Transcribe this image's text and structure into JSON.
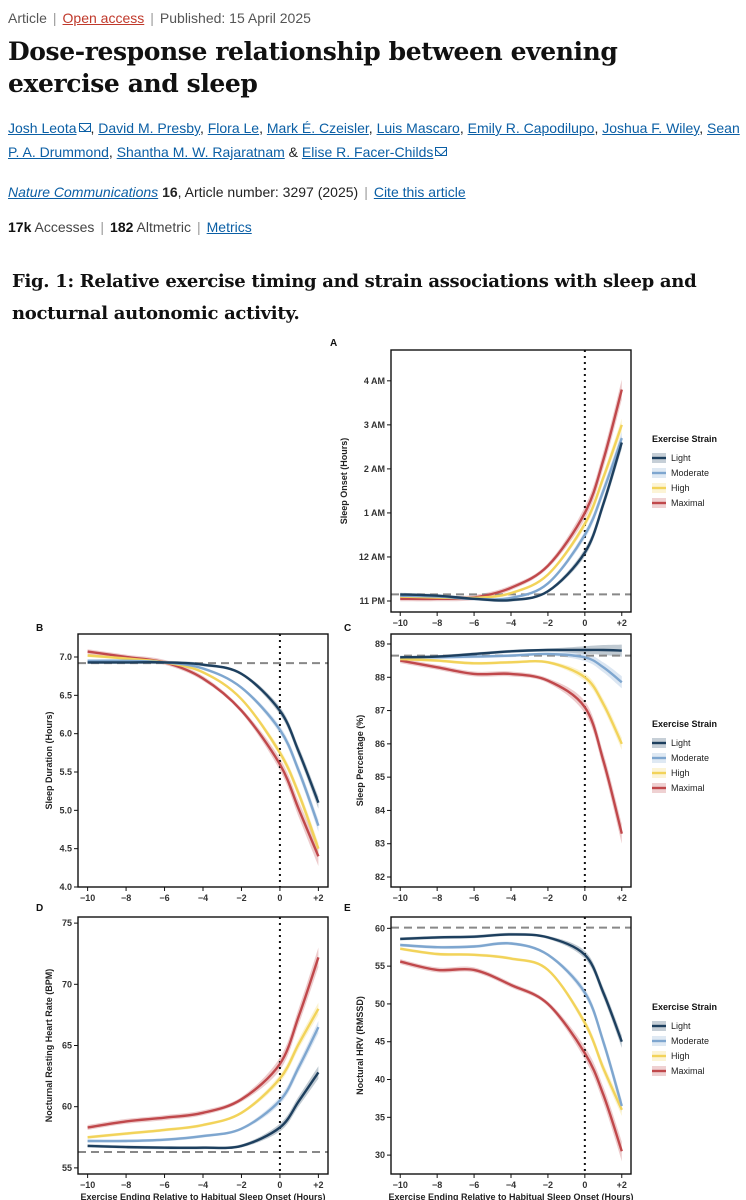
{
  "meta": {
    "type": "Article",
    "access": "Open access",
    "published": "Published: 15 April 2025"
  },
  "title": "Dose-response relationship between evening exercise and sleep",
  "authors": [
    "Josh Leota",
    "David M. Presby",
    "Flora Le",
    "Mark É. Czeisler",
    "Luis Mascaro",
    "Emily R. Capodilupo",
    "Joshua F. Wiley",
    "Sean P. A. Drummond",
    "Shantha M. W. Rajaratnam",
    "Elise R. Facer-Childs"
  ],
  "authors_joiner": "&",
  "journal": {
    "name": "Nature Communications",
    "volume": "16",
    "article_number": ", Article number: 3297 (2025)",
    "cite": "Cite this article"
  },
  "metrics": {
    "accesses": "17k",
    "accesses_label": "Accesses",
    "altmetric": "182",
    "altmetric_label": "Altmetric",
    "metrics_link": "Metrics"
  },
  "figure": {
    "title": "Fig. 1: Relative exercise timing and strain associations with sleep and nocturnal autonomic activity."
  },
  "colors": {
    "Light": "#1d3f5e",
    "Moderate": "#7ea6cf",
    "High": "#f2d35a",
    "Maximal": "#c0484b",
    "reference": "#888888"
  },
  "chart_data": [
    {
      "panel": "A",
      "type": "line",
      "ylabel": "Sleep Onset (Hours)",
      "xlabel": "",
      "xlim": [
        -10.5,
        2.5
      ],
      "ylim": [
        -1.25,
        4.7
      ],
      "xticks": [
        -10,
        -8,
        -6,
        -4,
        -2,
        0,
        2
      ],
      "xtick_labels": [
        "−10",
        "−8",
        "−6",
        "−4",
        "−2",
        "0",
        "+2"
      ],
      "yticks": [
        -1,
        0,
        1,
        2,
        3,
        4
      ],
      "ytick_labels": [
        "11 PM",
        "12 AM",
        "1 AM",
        "2 AM",
        "3 AM",
        "4 AM"
      ],
      "reference_y": -0.85,
      "legend_title": "Exercise Strain",
      "x": [
        -10,
        -8,
        -6,
        -4,
        -2,
        0,
        1,
        2
      ],
      "series": [
        {
          "name": "Light",
          "values": [
            -0.85,
            -0.88,
            -0.95,
            -0.98,
            -0.78,
            0.1,
            1.2,
            2.6
          ]
        },
        {
          "name": "Moderate",
          "values": [
            -0.88,
            -0.9,
            -0.95,
            -0.93,
            -0.6,
            0.5,
            1.5,
            2.7
          ]
        },
        {
          "name": "High",
          "values": [
            -0.9,
            -0.92,
            -0.93,
            -0.82,
            -0.4,
            0.75,
            1.8,
            3.0
          ]
        },
        {
          "name": "Maximal",
          "values": [
            -0.95,
            -0.95,
            -0.92,
            -0.7,
            -0.2,
            1.0,
            2.2,
            3.8
          ]
        }
      ]
    },
    {
      "panel": "B",
      "type": "line",
      "ylabel": "Sleep Duration (Hours)",
      "xlabel": "",
      "xlim": [
        -10.5,
        2.5
      ],
      "ylim": [
        4.0,
        7.3
      ],
      "xticks": [
        -10,
        -8,
        -6,
        -4,
        -2,
        0,
        2
      ],
      "xtick_labels": [
        "−10",
        "−8",
        "−6",
        "−4",
        "−2",
        "0",
        "+2"
      ],
      "yticks": [
        4.0,
        4.5,
        5.0,
        5.5,
        6.0,
        6.5,
        7.0
      ],
      "ytick_labels": [
        "4.0",
        "4.5",
        "5.0",
        "5.5",
        "6.0",
        "6.5",
        "7.0"
      ],
      "reference_y": 6.92,
      "x": [
        -10,
        -8,
        -6,
        -4,
        -2,
        0,
        1,
        2
      ],
      "series": [
        {
          "name": "Light",
          "values": [
            6.93,
            6.93,
            6.93,
            6.9,
            6.78,
            6.3,
            5.75,
            5.1
          ]
        },
        {
          "name": "Moderate",
          "values": [
            6.95,
            6.95,
            6.93,
            6.85,
            6.6,
            6.05,
            5.5,
            4.8
          ]
        },
        {
          "name": "High",
          "values": [
            7.02,
            6.98,
            6.93,
            6.8,
            6.45,
            5.75,
            5.2,
            4.5
          ]
        },
        {
          "name": "Maximal",
          "values": [
            7.07,
            7.0,
            6.93,
            6.72,
            6.3,
            5.6,
            5.0,
            4.4
          ]
        }
      ]
    },
    {
      "panel": "C",
      "type": "line",
      "ylabel": "Sleep Percentage (%)",
      "xlabel": "",
      "xlim": [
        -10.5,
        2.5
      ],
      "ylim": [
        81.7,
        89.3
      ],
      "xticks": [
        -10,
        -8,
        -6,
        -4,
        -2,
        0,
        2
      ],
      "xtick_labels": [
        "−10",
        "−8",
        "−6",
        "−4",
        "−2",
        "0",
        "+2"
      ],
      "yticks": [
        82,
        83,
        84,
        85,
        86,
        87,
        88,
        89
      ],
      "ytick_labels": [
        "82",
        "83",
        "84",
        "85",
        "86",
        "87",
        "88",
        "89"
      ],
      "reference_y": 88.65,
      "legend_title": "Exercise Strain",
      "x": [
        -10,
        -8,
        -6,
        -4,
        -2,
        0,
        1,
        2
      ],
      "series": [
        {
          "name": "Light",
          "values": [
            88.6,
            88.62,
            88.7,
            88.78,
            88.82,
            88.82,
            88.82,
            88.8
          ]
        },
        {
          "name": "Moderate",
          "values": [
            88.6,
            88.6,
            88.62,
            88.65,
            88.7,
            88.6,
            88.3,
            87.85
          ]
        },
        {
          "name": "High",
          "values": [
            88.55,
            88.5,
            88.42,
            88.45,
            88.45,
            88.0,
            87.2,
            86.0
          ]
        },
        {
          "name": "Maximal",
          "values": [
            88.5,
            88.3,
            88.1,
            88.1,
            87.9,
            87.1,
            85.5,
            83.3
          ]
        }
      ]
    },
    {
      "panel": "D",
      "type": "line",
      "ylabel": "Nocturnal Resting Heart Rate (BPM)",
      "xlabel": "Exercise Ending Relative to Habitual Sleep Onset (Hours)",
      "xlim": [
        -10.5,
        2.5
      ],
      "ylim": [
        54.5,
        75.5
      ],
      "xticks": [
        -10,
        -8,
        -6,
        -4,
        -2,
        0,
        2
      ],
      "xtick_labels": [
        "−10",
        "−8",
        "−6",
        "−4",
        "−2",
        "0",
        "+2"
      ],
      "yticks": [
        55,
        60,
        65,
        70,
        75
      ],
      "ytick_labels": [
        "55",
        "60",
        "65",
        "70",
        "75"
      ],
      "reference_y": 56.3,
      "x": [
        -10,
        -8,
        -6,
        -4,
        -2,
        0,
        1,
        2
      ],
      "series": [
        {
          "name": "Light",
          "values": [
            56.8,
            56.7,
            56.65,
            56.65,
            56.8,
            58.3,
            60.5,
            62.8
          ]
        },
        {
          "name": "Moderate",
          "values": [
            57.2,
            57.2,
            57.3,
            57.6,
            58.2,
            60.5,
            63.3,
            66.5
          ]
        },
        {
          "name": "High",
          "values": [
            57.5,
            57.8,
            58.1,
            58.5,
            59.5,
            62.3,
            65.2,
            68.0
          ]
        },
        {
          "name": "Maximal",
          "values": [
            58.3,
            58.8,
            59.1,
            59.5,
            60.6,
            63.5,
            67.5,
            72.2
          ]
        }
      ]
    },
    {
      "panel": "E",
      "type": "line",
      "ylabel": "Noctural HRV (RMSSD)",
      "xlabel": "Exercise Ending Relative to Habitual Sleep Onset (Hours)",
      "xlim": [
        -10.5,
        2.5
      ],
      "ylim": [
        27.5,
        61.5
      ],
      "xticks": [
        -10,
        -8,
        -6,
        -4,
        -2,
        0,
        2
      ],
      "xtick_labels": [
        "−10",
        "−8",
        "−6",
        "−4",
        "−2",
        "0",
        "+2"
      ],
      "yticks": [
        30,
        35,
        40,
        45,
        50,
        55,
        60
      ],
      "ytick_labels": [
        "30",
        "35",
        "40",
        "45",
        "50",
        "55",
        "60"
      ],
      "reference_y": 60.1,
      "legend_title": "Exercise Strain",
      "x": [
        -10,
        -8,
        -6,
        -4,
        -2,
        0,
        1,
        2
      ],
      "series": [
        {
          "name": "Light",
          "values": [
            58.6,
            58.8,
            58.9,
            59.2,
            58.8,
            56.5,
            51.5,
            45.0
          ]
        },
        {
          "name": "Moderate",
          "values": [
            57.8,
            57.5,
            57.6,
            58.0,
            56.5,
            51.5,
            45.0,
            36.5
          ]
        },
        {
          "name": "High",
          "values": [
            57.3,
            56.6,
            56.5,
            56.0,
            54.5,
            47.5,
            41.5,
            36.0
          ]
        },
        {
          "name": "Maximal",
          "values": [
            55.6,
            54.5,
            54.5,
            52.5,
            50.0,
            43.5,
            38.0,
            30.5
          ]
        }
      ]
    }
  ]
}
